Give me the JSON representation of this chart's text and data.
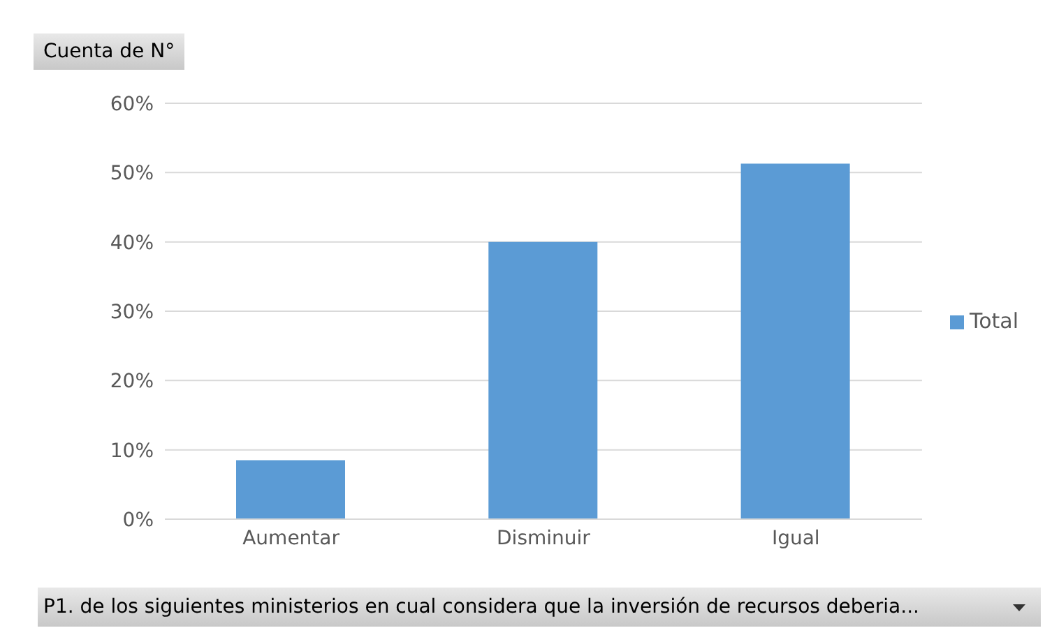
{
  "chart_data": {
    "type": "bar",
    "title": "Cuenta de N°",
    "xlabel": "P1. de los siguientes ministerios en cual considera que la inversión de recursos deberia...",
    "categories": [
      "Aumentar",
      "Disminuir",
      "Igual"
    ],
    "series": [
      {
        "name": "Total",
        "color": "#5b9bd5",
        "values": [
          8.5,
          40,
          51.3
        ]
      }
    ],
    "ylim": [
      0,
      60
    ],
    "yticks": [
      {
        "value": 0,
        "label": "0%"
      },
      {
        "value": 10,
        "label": "10%"
      },
      {
        "value": 20,
        "label": "20%"
      },
      {
        "value": 30,
        "label": "30%"
      },
      {
        "value": 40,
        "label": "40%"
      },
      {
        "value": 50,
        "label": "50%"
      },
      {
        "value": 60,
        "label": "60%"
      }
    ],
    "grid": "y",
    "legend": "right"
  }
}
